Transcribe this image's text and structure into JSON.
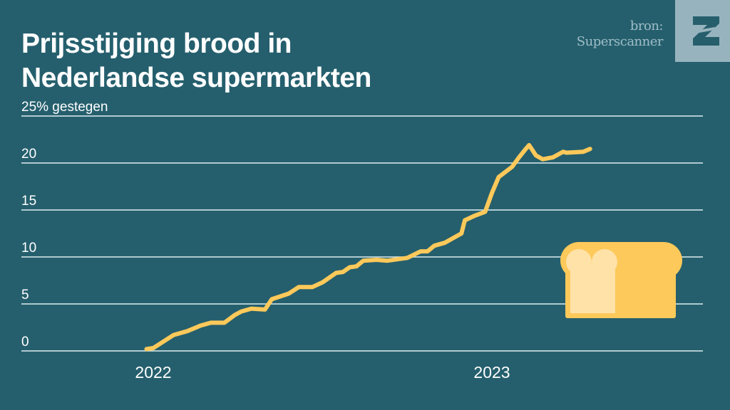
{
  "header": {
    "title_line1": "Prijsstijging brood in",
    "title_line2": "Nederlandse supermarkten",
    "source_line1": "bron:",
    "source_line2": "Superscanner",
    "logo_letter": "Z"
  },
  "colors": {
    "background": "#255f6d",
    "line": "#fdc95a",
    "grid": "#dfeef2",
    "bread_dark": "#fdc95a",
    "bread_light": "#fee2a8",
    "logo_bg": "#97b4be"
  },
  "chart_data": {
    "type": "line",
    "title": "Prijsstijging brood in Nederlandse supermarkten",
    "ylabel": "% gestegen",
    "ylim": [
      0,
      25
    ],
    "yticks": [
      0,
      5,
      10,
      15,
      20,
      25
    ],
    "ytick_labels": [
      "0",
      "5",
      "10",
      "15",
      "20",
      "25% gestegen"
    ],
    "xticks": [
      2022,
      2023
    ],
    "xtick_labels": [
      "2022",
      "2023"
    ],
    "grid": true,
    "series": [
      {
        "name": "Brood",
        "x": [
          2021.98,
          2022.0,
          2022.06,
          2022.1,
          2022.14,
          2022.17,
          2022.21,
          2022.24,
          2022.26,
          2022.29,
          2022.33,
          2022.35,
          2022.4,
          2022.43,
          2022.47,
          2022.5,
          2022.54,
          2022.56,
          2022.58,
          2022.6,
          2022.62,
          2022.66,
          2022.69,
          2022.75,
          2022.79,
          2022.81,
          2022.83,
          2022.86,
          2022.89,
          2022.91,
          2022.92,
          2022.95,
          2022.98,
          2023.0,
          2023.02,
          2023.06,
          2023.08,
          2023.1,
          2023.11,
          2023.13,
          2023.15,
          2023.18,
          2023.21,
          2023.22,
          2023.27,
          2023.29
        ],
        "values": [
          0.2,
          0.3,
          1.7,
          2.1,
          2.7,
          3.0,
          3.0,
          3.8,
          4.2,
          4.5,
          4.4,
          5.5,
          6.1,
          6.8,
          6.8,
          7.3,
          8.3,
          8.4,
          8.9,
          9.0,
          9.6,
          9.7,
          9.6,
          9.9,
          10.6,
          10.6,
          11.2,
          11.5,
          12.1,
          12.5,
          13.9,
          14.4,
          14.8,
          16.8,
          18.5,
          19.6,
          20.6,
          21.5,
          21.9,
          20.8,
          20.4,
          20.6,
          21.2,
          21.1,
          21.2,
          21.5
        ]
      }
    ]
  }
}
